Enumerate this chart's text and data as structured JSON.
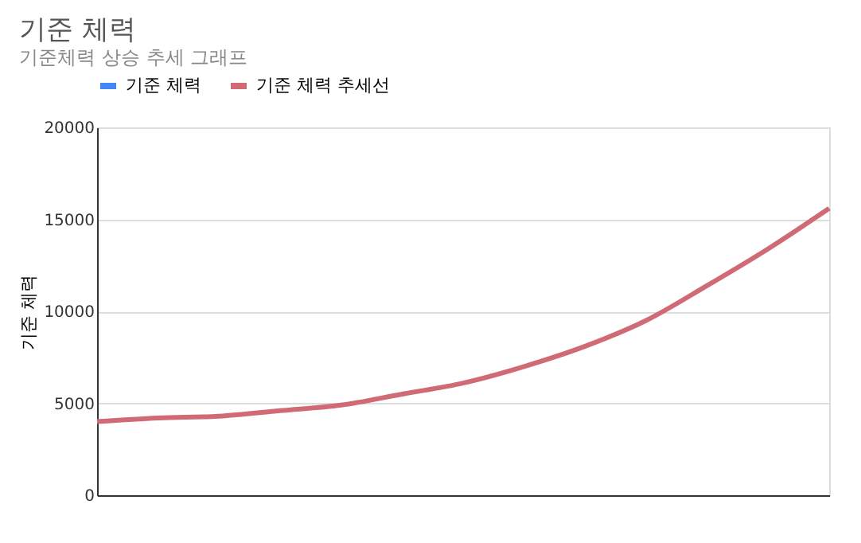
{
  "chart_data": {
    "type": "line",
    "title": "기준 체력",
    "subtitle": "기준체력 상승 추세 그래프",
    "ylabel": "기준 체력",
    "categories": [
      null,
      null,
      null,
      null,
      null,
      null,
      null,
      null,
      null,
      null,
      null,
      null,
      null
    ],
    "series": [
      {
        "name": "기준 체력",
        "color": "#4285f4",
        "values": [
          null,
          null,
          null,
          null,
          null,
          null,
          null,
          null,
          null,
          null,
          null,
          null,
          null
        ]
      },
      {
        "name": "기준 체력 추세선",
        "color": "#d06b75",
        "values": [
          4000,
          4200,
          4300,
          4600,
          4900,
          5500,
          6100,
          7000,
          8100,
          9500,
          11400,
          13400,
          15600
        ]
      }
    ],
    "ylim": [
      0,
      20000
    ],
    "yticks": [
      0,
      5000,
      10000,
      15000,
      20000
    ],
    "grid": "y",
    "legend": "top",
    "tick_labels": "y",
    "marker": "none",
    "line_style": "solid"
  }
}
